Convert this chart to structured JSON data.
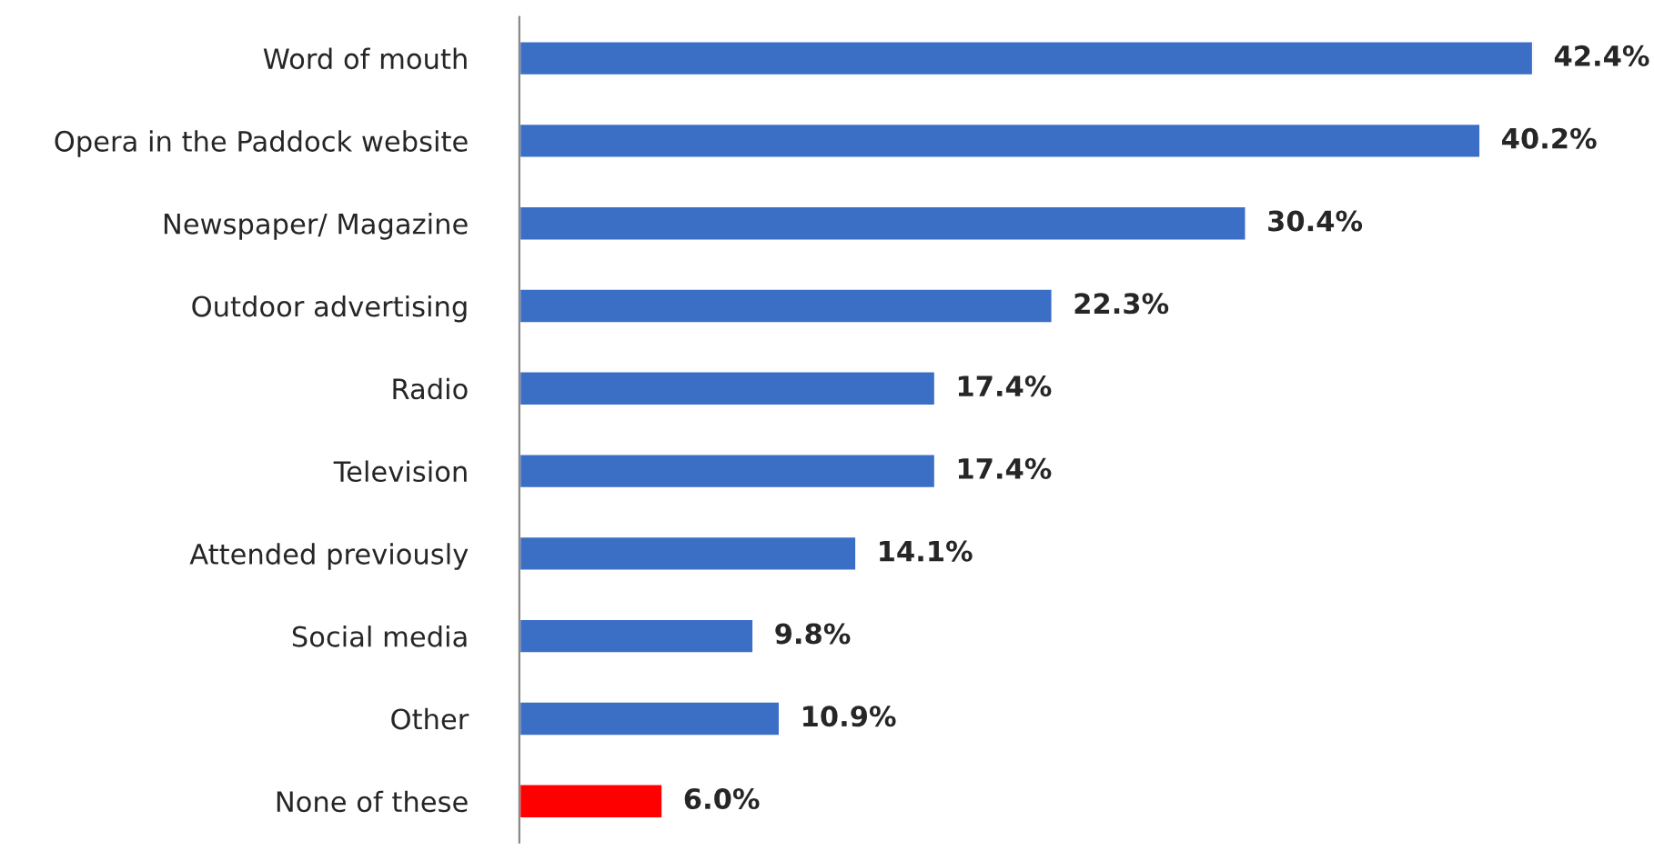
{
  "chart_data": {
    "type": "bar",
    "orientation": "horizontal",
    "categories": [
      "Word of mouth",
      "Opera in the Paddock website",
      "Newspaper/ Magazine",
      "Outdoor advertising",
      "Radio",
      "Television",
      "Attended previously",
      "Social media",
      "Other",
      "None of these"
    ],
    "values": [
      42.4,
      40.2,
      30.4,
      22.3,
      17.4,
      17.4,
      14.1,
      9.8,
      10.9,
      6.0
    ],
    "value_labels": [
      "42.4%",
      "40.2%",
      "30.4%",
      "22.3%",
      "17.4%",
      "17.4%",
      "14.1%",
      "9.8%",
      "10.9%",
      "6.0%"
    ],
    "colors": [
      "#3b6fc6",
      "#3b6fc6",
      "#3b6fc6",
      "#3b6fc6",
      "#3b6fc6",
      "#3b6fc6",
      "#3b6fc6",
      "#3b6fc6",
      "#3b6fc6",
      "#ff0000"
    ],
    "grid": false,
    "legend": false
  }
}
